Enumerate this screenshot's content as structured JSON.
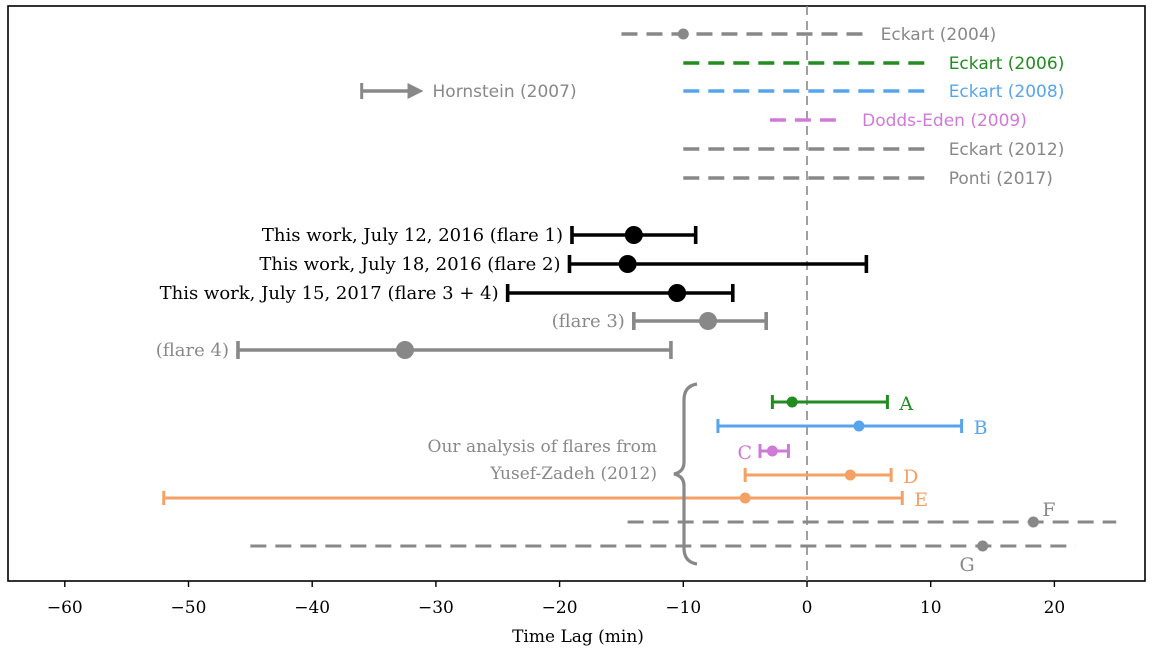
{
  "chart_data": {
    "type": "scatter",
    "xlabel": "Time Lag (min)",
    "xlim": [
      -65,
      26
    ],
    "x_ticks": [
      -60,
      -50,
      -40,
      -30,
      -20,
      -10,
      0,
      10,
      20
    ],
    "x_tick_labels": [
      "−60",
      "−50",
      "−40",
      "−30",
      "−20",
      "−10",
      "0",
      "10",
      "20"
    ],
    "zero_line": 0,
    "grid": false,
    "colors": {
      "gray": "#888888",
      "green": "#228b22",
      "blue": "#56a5ec",
      "purple": "#d07ad8",
      "orange": "#f5a064",
      "black": "#000000"
    },
    "literature_ranges": [
      {
        "label": "Eckart (2004)",
        "color": "gray",
        "x_min": -15,
        "x_max": 4.5,
        "point": -10
      },
      {
        "label": "Eckart (2006)",
        "color": "green",
        "x_min": -10,
        "x_max": 10
      },
      {
        "label": "Eckart (2008)",
        "color": "blue",
        "x_min": -10,
        "x_max": 10
      },
      {
        "label": "Dodds-Eden (2009)",
        "color": "purple",
        "x_min": -3,
        "x_max": 3
      },
      {
        "label": "Eckart (2012)",
        "color": "gray",
        "x_min": -10,
        "x_max": 10
      },
      {
        "label": "Ponti (2017)",
        "color": "gray",
        "x_min": -10,
        "x_max": 10
      }
    ],
    "lower_limit": {
      "label": "Hornstein (2007)",
      "color": "gray",
      "x": -36,
      "arrow_to": -31
    },
    "this_work": [
      {
        "label": "This work, July 12, 2016 (flare 1)",
        "color": "black",
        "value": -14,
        "lower": -19,
        "upper": -9
      },
      {
        "label": "This work, July 18, 2016 (flare 2)",
        "color": "black",
        "value": -14.5,
        "lower": -19.2,
        "upper": 4.8
      },
      {
        "label": "This work, July 15, 2017 (flare 3 + 4)",
        "color": "black",
        "value": -10.5,
        "lower": -24.2,
        "upper": -6
      },
      {
        "label": "(flare 3)",
        "color": "gray",
        "value": -8,
        "lower": -14,
        "upper": -3.3
      },
      {
        "label": "(flare 4)",
        "color": "gray",
        "value": -32.5,
        "lower": -46,
        "upper": -11
      }
    ],
    "group_label": [
      "Our analysis of flares from",
      "Yusef-Zadeh (2012)"
    ],
    "yusef_zadeh": [
      {
        "label": "A",
        "color": "green",
        "value": -1.2,
        "lower": -2.8,
        "upper": 6.5,
        "style": "solid"
      },
      {
        "label": "B",
        "color": "blue",
        "value": 4.2,
        "lower": -7.2,
        "upper": 12.5,
        "style": "solid"
      },
      {
        "label": "C",
        "color": "purple",
        "value": -2.8,
        "lower": -3.8,
        "upper": -1.5,
        "style": "solid"
      },
      {
        "label": "D",
        "color": "orange",
        "value": 3.5,
        "lower": -5,
        "upper": 6.8,
        "style": "solid"
      },
      {
        "label": "E",
        "color": "orange",
        "value": -5,
        "lower": -52,
        "upper": 7.7,
        "style": "solid"
      },
      {
        "label": "F",
        "color": "gray",
        "value": 18.3,
        "lower": -14.5,
        "upper": 25,
        "style": "dashed"
      },
      {
        "label": "G",
        "color": "gray",
        "value": 14.2,
        "lower": -45,
        "upper": 21.7,
        "style": "dashed"
      }
    ]
  }
}
